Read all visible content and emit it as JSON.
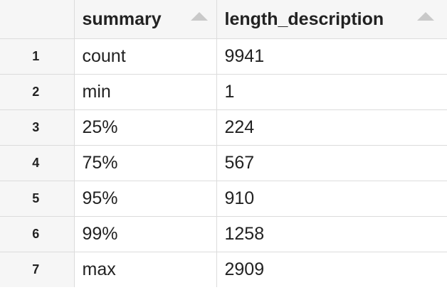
{
  "table": {
    "columns": [
      {
        "label": "summary",
        "sort_icon": "sort-asc-icon"
      },
      {
        "label": "length_description",
        "sort_icon": "sort-asc-icon"
      }
    ],
    "rows": [
      {
        "index": "1",
        "summary": "count",
        "length_description": "9941"
      },
      {
        "index": "2",
        "summary": "min",
        "length_description": "1"
      },
      {
        "index": "3",
        "summary": "25%",
        "length_description": "224"
      },
      {
        "index": "4",
        "summary": "75%",
        "length_description": "567"
      },
      {
        "index": "5",
        "summary": "95%",
        "length_description": "910"
      },
      {
        "index": "6",
        "summary": "99%",
        "length_description": "1258"
      },
      {
        "index": "7",
        "summary": "max",
        "length_description": "2909"
      }
    ]
  },
  "colors": {
    "header_background": "#f6f6f6",
    "gridline": "#dcdcdc",
    "sort_icon": "#c9c9c9",
    "text": "#222222"
  }
}
